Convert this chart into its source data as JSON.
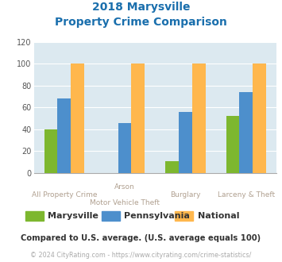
{
  "title_line1": "2018 Marysville",
  "title_line2": "Property Crime Comparison",
  "title_color": "#1a6fad",
  "category_labels_row1": [
    "All Property Crime",
    "Arson",
    "Burglary",
    "Larceny & Theft"
  ],
  "category_labels_row2": [
    "",
    "Motor Vehicle Theft",
    "",
    ""
  ],
  "marysville": [
    40,
    0,
    11,
    52
  ],
  "pennsylvania": [
    68,
    46,
    56,
    74
  ],
  "national": [
    100,
    100,
    100,
    100
  ],
  "color_marysville": "#7db72f",
  "color_pennsylvania": "#4d8fcc",
  "color_national": "#ffb74d",
  "ylim": [
    0,
    120
  ],
  "yticks": [
    0,
    20,
    40,
    60,
    80,
    100,
    120
  ],
  "legend_labels": [
    "Marysville",
    "Pennsylvania",
    "National"
  ],
  "footnote1": "Compared to U.S. average. (U.S. average equals 100)",
  "footnote2": "© 2024 CityRating.com - https://www.cityrating.com/crime-statistics/",
  "background_color": "#dce9f0",
  "grid_color": "#ffffff",
  "axis_label_color": "#b0a090"
}
